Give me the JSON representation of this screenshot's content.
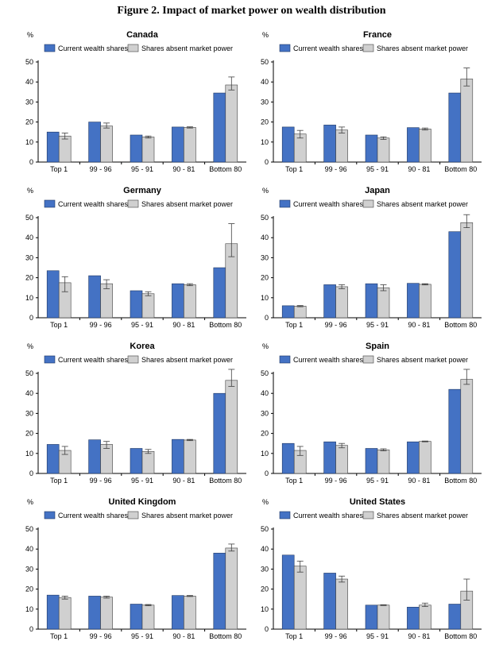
{
  "figure_title": "Figure 2. Impact of market power on wealth distribution",
  "colors": {
    "current": "#4472C4",
    "current_stroke": "#1F3864",
    "absent": "#D0D0D0",
    "absent_stroke": "#404040",
    "error_bar": "#404040",
    "axis": "#000000"
  },
  "chart_data": [
    {
      "type": "bar",
      "title": "Canada",
      "unit": "%",
      "categories": [
        "Top 1",
        "99 - 96",
        "95 - 91",
        "90 - 81",
        "Bottom 80"
      ],
      "ylim": [
        0,
        50
      ],
      "yticks": [
        0,
        10,
        20,
        30,
        40,
        50
      ],
      "legend": "top",
      "series": [
        {
          "name": "Current wealth shares",
          "values": [
            15,
            20,
            13.5,
            17.5,
            34.5
          ]
        },
        {
          "name": "Shares absent market power",
          "values": [
            13,
            18,
            12.5,
            17.3,
            38.5
          ],
          "error_low": [
            11.5,
            17,
            12,
            17,
            36
          ],
          "error_high": [
            14.5,
            19.5,
            13,
            17.6,
            42.5
          ]
        }
      ]
    },
    {
      "type": "bar",
      "title": "France",
      "unit": "%",
      "categories": [
        "Top 1",
        "99 - 96",
        "95 - 91",
        "90 - 81",
        "Bottom 80"
      ],
      "ylim": [
        0,
        50
      ],
      "yticks": [
        0,
        10,
        20,
        30,
        40,
        50
      ],
      "legend": "top",
      "series": [
        {
          "name": "Current wealth shares",
          "values": [
            17.5,
            18.5,
            13.5,
            17.2,
            34.5
          ]
        },
        {
          "name": "Shares absent market power",
          "values": [
            14,
            16,
            12,
            16.5,
            41.5
          ],
          "error_low": [
            12,
            14.5,
            11.3,
            16,
            38
          ],
          "error_high": [
            15.8,
            17.5,
            12.6,
            17,
            47
          ]
        }
      ]
    },
    {
      "type": "bar",
      "title": "Germany",
      "unit": "%",
      "categories": [
        "Top 1",
        "99 - 96",
        "95 - 91",
        "90 - 81",
        "Bottom 80"
      ],
      "ylim": [
        0,
        50
      ],
      "yticks": [
        0,
        10,
        20,
        30,
        40,
        50
      ],
      "legend": "top",
      "series": [
        {
          "name": "Current wealth shares",
          "values": [
            23.5,
            21,
            13.5,
            17,
            25
          ]
        },
        {
          "name": "Shares absent market power",
          "values": [
            17.5,
            17,
            12,
            16.5,
            37
          ],
          "error_low": [
            13,
            14.5,
            11,
            16,
            30.5
          ],
          "error_high": [
            20.5,
            19,
            13,
            17,
            47
          ]
        }
      ]
    },
    {
      "type": "bar",
      "title": "Japan",
      "unit": "%",
      "categories": [
        "Top 1",
        "99 - 96",
        "95 - 91",
        "90 - 81",
        "Bottom 80"
      ],
      "ylim": [
        0,
        50
      ],
      "yticks": [
        0,
        10,
        20,
        30,
        40,
        50
      ],
      "legend": "top",
      "series": [
        {
          "name": "Current wealth shares",
          "values": [
            6,
            16.5,
            17,
            17.2,
            43
          ]
        },
        {
          "name": "Shares absent market power",
          "values": [
            5.8,
            15.5,
            15,
            16.7,
            47.5
          ],
          "error_low": [
            5.5,
            14.5,
            13.5,
            16.4,
            45
          ],
          "error_high": [
            6.1,
            16.5,
            16.5,
            17,
            51.5
          ]
        }
      ]
    },
    {
      "type": "bar",
      "title": "Korea",
      "unit": "%",
      "categories": [
        "Top 1",
        "99 - 96",
        "95 - 91",
        "90 - 81",
        "Bottom 80"
      ],
      "ylim": [
        0,
        50
      ],
      "yticks": [
        0,
        10,
        20,
        30,
        40,
        50
      ],
      "legend": "top",
      "series": [
        {
          "name": "Current wealth shares",
          "values": [
            14.5,
            16.8,
            12.5,
            17,
            40
          ]
        },
        {
          "name": "Shares absent market power",
          "values": [
            11.5,
            14.5,
            11,
            16.7,
            46.5
          ],
          "error_low": [
            9.5,
            12.5,
            10,
            16.4,
            43.5
          ],
          "error_high": [
            13.5,
            16,
            12,
            17,
            52
          ]
        }
      ]
    },
    {
      "type": "bar",
      "title": "Spain",
      "unit": "%",
      "categories": [
        "Top 1",
        "99 - 96",
        "95 - 91",
        "90 - 81",
        "Bottom 80"
      ],
      "ylim": [
        0,
        50
      ],
      "yticks": [
        0,
        10,
        20,
        30,
        40,
        50
      ],
      "legend": "top",
      "series": [
        {
          "name": "Current wealth shares",
          "values": [
            15,
            15.8,
            12.5,
            15.8,
            42
          ]
        },
        {
          "name": "Shares absent market power",
          "values": [
            11.5,
            14,
            11.8,
            16,
            47
          ],
          "error_low": [
            9,
            12.8,
            11.3,
            15.8,
            44.5
          ],
          "error_high": [
            13.5,
            15,
            12.3,
            16.2,
            52
          ]
        }
      ]
    },
    {
      "type": "bar",
      "title": "United Kingdom",
      "unit": "%",
      "categories": [
        "Top 1",
        "99 - 96",
        "95 - 91",
        "90 - 81",
        "Bottom 80"
      ],
      "ylim": [
        0,
        50
      ],
      "yticks": [
        0,
        10,
        20,
        30,
        40,
        50
      ],
      "legend": "top",
      "series": [
        {
          "name": "Current wealth shares",
          "values": [
            17,
            16.5,
            12.5,
            16.8,
            38
          ]
        },
        {
          "name": "Shares absent market power",
          "values": [
            15.8,
            16,
            12,
            16.5,
            40.5
          ],
          "error_low": [
            15,
            15.5,
            11.7,
            16.3,
            39
          ],
          "error_high": [
            16.5,
            16.5,
            12.3,
            16.8,
            42.5
          ]
        }
      ]
    },
    {
      "type": "bar",
      "title": "United States",
      "unit": "%",
      "categories": [
        "Top 1",
        "99 - 96",
        "95 - 91",
        "90 - 81",
        "Bottom 80"
      ],
      "ylim": [
        0,
        50
      ],
      "yticks": [
        0,
        10,
        20,
        30,
        40,
        50
      ],
      "legend": "top",
      "series": [
        {
          "name": "Current wealth shares",
          "values": [
            37,
            28,
            12,
            11,
            12.5
          ]
        },
        {
          "name": "Shares absent market power",
          "values": [
            31.5,
            25,
            12,
            12,
            19
          ],
          "error_low": [
            28.5,
            23.5,
            11.8,
            11.3,
            14.5
          ],
          "error_high": [
            34,
            26.5,
            12.2,
            13,
            25
          ]
        }
      ]
    }
  ]
}
